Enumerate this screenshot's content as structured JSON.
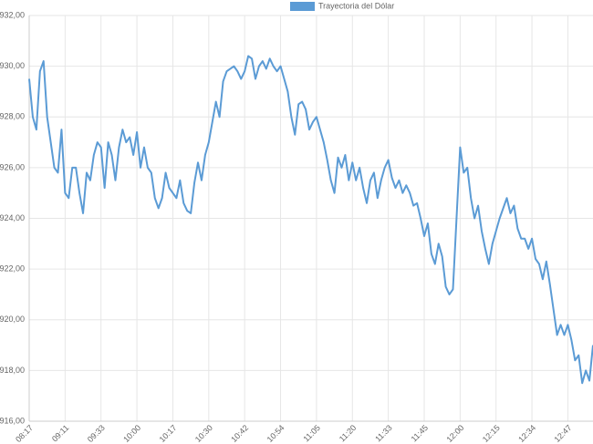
{
  "chart_data": {
    "type": "line",
    "legend": "Trayectoria del Dólar",
    "color": "#5b9bd5",
    "grid": true,
    "ylim": [
      916,
      932
    ],
    "yticks": [
      {
        "value": 916,
        "label": "$916,00"
      },
      {
        "value": 918,
        "label": "$918,00"
      },
      {
        "value": 920,
        "label": "$920,00"
      },
      {
        "value": 922,
        "label": "$922,00"
      },
      {
        "value": 924,
        "label": "$924,00"
      },
      {
        "value": 926,
        "label": "$926,00"
      },
      {
        "value": 928,
        "label": "$928,00"
      },
      {
        "value": 930,
        "label": "$930,00"
      },
      {
        "value": 932,
        "label": "$932,00"
      }
    ],
    "categories": [
      "08:17",
      null,
      null,
      null,
      null,
      null,
      null,
      null,
      null,
      null,
      "09:11",
      null,
      null,
      null,
      null,
      null,
      null,
      null,
      null,
      null,
      "09:33",
      null,
      null,
      null,
      null,
      null,
      null,
      null,
      null,
      null,
      "10:00",
      null,
      null,
      null,
      null,
      null,
      null,
      null,
      null,
      null,
      "10:17",
      null,
      null,
      null,
      null,
      null,
      null,
      null,
      null,
      null,
      "10:30",
      null,
      null,
      null,
      null,
      null,
      null,
      null,
      null,
      null,
      "10:42",
      null,
      null,
      null,
      null,
      null,
      null,
      null,
      null,
      null,
      "10:54",
      null,
      null,
      null,
      null,
      null,
      null,
      null,
      null,
      null,
      "11:05",
      null,
      null,
      null,
      null,
      null,
      null,
      null,
      null,
      null,
      "11:20",
      null,
      null,
      null,
      null,
      null,
      null,
      null,
      null,
      null,
      "11:33",
      null,
      null,
      null,
      null,
      null,
      null,
      null,
      null,
      null,
      "11:45",
      null,
      null,
      null,
      null,
      null,
      null,
      null,
      null,
      null,
      "12:00",
      null,
      null,
      null,
      null,
      null,
      null,
      null,
      null,
      null,
      "12:15",
      null,
      null,
      null,
      null,
      null,
      null,
      null,
      null,
      null,
      "12:34",
      null,
      null,
      null,
      null,
      null,
      null,
      null,
      null,
      null,
      "12:47",
      null,
      null,
      null,
      null,
      null,
      null,
      null
    ],
    "values": [
      929.5,
      928,
      927.5,
      929.8,
      930.2,
      928,
      927,
      926,
      925.8,
      927.5,
      925,
      924.8,
      926,
      926,
      925,
      924.2,
      925.8,
      925.5,
      926.5,
      927,
      926.8,
      925.2,
      927,
      926.5,
      925.5,
      926.8,
      927.5,
      927,
      927.2,
      926.5,
      927.4,
      926,
      926.8,
      926,
      925.8,
      924.8,
      924.4,
      924.8,
      925.8,
      925.2,
      925,
      924.8,
      925.5,
      924.6,
      924.3,
      924.2,
      925.4,
      926.2,
      925.5,
      926.5,
      927,
      927.8,
      928.6,
      928,
      929.4,
      929.8,
      929.9,
      930,
      929.8,
      929.5,
      929.8,
      930.4,
      930.3,
      929.5,
      930,
      930.2,
      929.9,
      930.3,
      930,
      929.8,
      930,
      929.5,
      929,
      928,
      927.3,
      928.5,
      928.6,
      928.3,
      927.5,
      927.8,
      928,
      927.5,
      927,
      926.3,
      925.5,
      925,
      926.4,
      926,
      926.5,
      925.5,
      926.2,
      925.5,
      926,
      925.2,
      924.6,
      925.5,
      925.8,
      924.8,
      925.5,
      926,
      926.3,
      925.6,
      925.2,
      925.5,
      925,
      925.3,
      925,
      924.5,
      924.6,
      924,
      923.3,
      923.8,
      922.6,
      922.2,
      923,
      922.5,
      921.3,
      921,
      921.2,
      924,
      926.8,
      925.8,
      926,
      924.8,
      924,
      924.5,
      923.5,
      922.8,
      922.2,
      923,
      923.5,
      924,
      924.4,
      924.8,
      924.2,
      924.5,
      923.6,
      923.2,
      923.2,
      922.8,
      923.2,
      922.4,
      922.2,
      921.6,
      922.3,
      921.4,
      920.4,
      919.4,
      919.8,
      919.4,
      919.8,
      919.2,
      918.4,
      918.6,
      917.5,
      918,
      917.6,
      919
    ]
  }
}
